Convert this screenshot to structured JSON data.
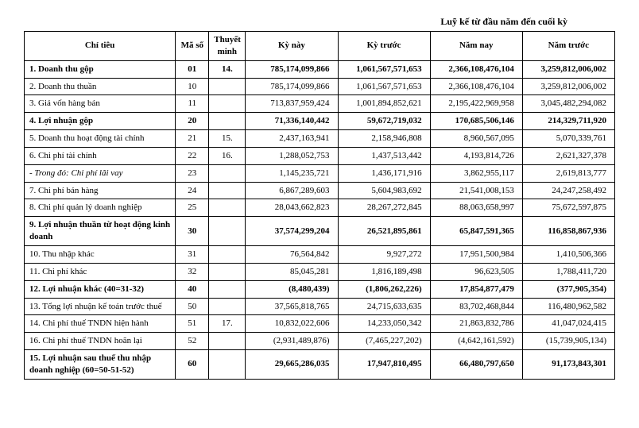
{
  "header_right": "Luỹ kế từ đầu năm đến cuối kỳ",
  "columns": [
    "Chỉ tiêu",
    "Mã số",
    "Thuyết minh",
    "Kỳ này",
    "Kỳ trước",
    "Năm nay",
    "Năm trước"
  ],
  "rows": [
    {
      "bold": true,
      "label": "1. Doanh thu gộp",
      "code": "01",
      "note": "14.",
      "vals": [
        "785,174,099,866",
        "1,061,567,571,653",
        "2,366,108,476,104",
        "3,259,812,006,002"
      ]
    },
    {
      "bold": false,
      "label": "2. Doanh thu thuần",
      "code": "10",
      "note": "",
      "vals": [
        "785,174,099,866",
        "1,061,567,571,653",
        "2,366,108,476,104",
        "3,259,812,006,002"
      ]
    },
    {
      "bold": false,
      "label": "3. Giá vốn hàng bán",
      "code": "11",
      "note": "",
      "vals": [
        "713,837,959,424",
        "1,001,894,852,621",
        "2,195,422,969,958",
        "3,045,482,294,082"
      ]
    },
    {
      "bold": true,
      "label": "4. Lợi nhuận gộp",
      "code": "20",
      "note": "",
      "vals": [
        "71,336,140,442",
        "59,672,719,032",
        "170,685,506,146",
        "214,329,711,920"
      ]
    },
    {
      "bold": false,
      "label": "5. Doanh thu hoạt động tài chính",
      "code": "21",
      "note": "15.",
      "vals": [
        "2,437,163,941",
        "2,158,946,808",
        "8,960,567,095",
        "5,070,339,761"
      ]
    },
    {
      "bold": false,
      "label": "6. Chi phí tài chính",
      "code": "22",
      "note": "16.",
      "vals": [
        "1,288,052,753",
        "1,437,513,442",
        "4,193,814,726",
        "2,621,327,378"
      ]
    },
    {
      "bold": false,
      "italic": true,
      "label": "- Trong đó: Chi phí lãi vay",
      "code": "23",
      "note": "",
      "vals": [
        "1,145,235,721",
        "1,436,171,916",
        "3,862,955,117",
        "2,619,813,777"
      ]
    },
    {
      "bold": false,
      "label": "7. Chi phí bán hàng",
      "code": "24",
      "note": "",
      "vals": [
        "6,867,289,603",
        "5,604,983,692",
        "21,541,008,153",
        "24,247,258,492"
      ]
    },
    {
      "bold": false,
      "label": "8. Chi phí quản lý doanh nghiệp",
      "code": "25",
      "note": "",
      "vals": [
        "28,043,662,823",
        "28,267,272,845",
        "88,063,658,997",
        "75,672,597,875"
      ]
    },
    {
      "bold": true,
      "label": "9. Lợi nhuận thuần từ hoạt động kinh doanh",
      "code": "30",
      "note": "",
      "vals": [
        "37,574,299,204",
        "26,521,895,861",
        "65,847,591,365",
        "116,858,867,936"
      ]
    },
    {
      "bold": false,
      "label": "10. Thu nhập khác",
      "code": "31",
      "note": "",
      "vals": [
        "76,564,842",
        "9,927,272",
        "17,951,500,984",
        "1,410,506,366"
      ]
    },
    {
      "bold": false,
      "label": "11. Chi phí khác",
      "code": "32",
      "note": "",
      "vals": [
        "85,045,281",
        "1,816,189,498",
        "96,623,505",
        "1,788,411,720"
      ]
    },
    {
      "bold": true,
      "label": "12. Lợi nhuận khác (40=31-32)",
      "code": "40",
      "note": "",
      "vals": [
        "(8,480,439)",
        "(1,806,262,226)",
        "17,854,877,479",
        "(377,905,354)"
      ]
    },
    {
      "bold": false,
      "label": "13. Tổng lợi nhuận kế toán trước thuế",
      "code": "50",
      "note": "",
      "vals": [
        "37,565,818,765",
        "24,715,633,635",
        "83,702,468,844",
        "116,480,962,582"
      ]
    },
    {
      "bold": false,
      "label": "14. Chi phí thuế TNDN hiện hành",
      "code": "51",
      "note": "17.",
      "vals": [
        "10,832,022,606",
        "14,233,050,342",
        "21,863,832,786",
        "41,047,024,415"
      ]
    },
    {
      "bold": false,
      "label": "16. Chi phí thuế TNDN hoãn lại",
      "code": "52",
      "note": "",
      "vals": [
        "(2,931,489,876)",
        "(7,465,227,202)",
        "(4,642,161,592)",
        "(15,739,905,134)"
      ]
    },
    {
      "bold": true,
      "label": "15. Lợi nhuận sau thuế thu nhập doanh nghiệp  (60=50-51-52)",
      "code": "60",
      "note": "",
      "vals": [
        "29,665,286,035",
        "17,947,810,495",
        "66,480,797,650",
        "91,173,843,301"
      ]
    }
  ]
}
